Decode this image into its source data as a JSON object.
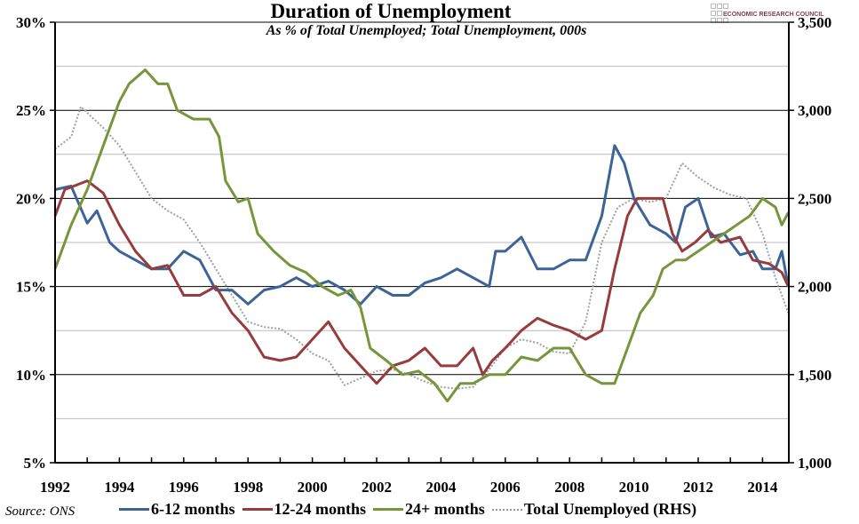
{
  "chart_data": {
    "type": "line",
    "title": "Duration of Unemployment",
    "subtitle": "As % of Total Unemployed; Total Unemployment, 000s",
    "source": "Source: ONS",
    "logo_text": "ECONOMIC RESEARCH COUNCIL",
    "x_ticks": [
      "1992",
      "1994",
      "1996",
      "1998",
      "2000",
      "2002",
      "2004",
      "2006",
      "2008",
      "2010",
      "2012",
      "2014"
    ],
    "xlim": [
      1992,
      2014.8
    ],
    "y_left": {
      "range": [
        5,
        30
      ],
      "ticks": [
        "5%",
        "10%",
        "15%",
        "20%",
        "25%",
        "30%"
      ],
      "tick_values": [
        5,
        10,
        15,
        20,
        25,
        30
      ]
    },
    "y_right": {
      "range": [
        1000,
        3500
      ],
      "ticks": [
        "1,000",
        "1,500",
        "2,000",
        "2,500",
        "3,000",
        "3,500"
      ],
      "tick_values": [
        1000,
        1500,
        2000,
        2500,
        3000,
        3500
      ]
    },
    "grid": true,
    "legend_placement": "bottom",
    "series": [
      {
        "name": "6-12 months",
        "axis": "left",
        "color": "#3c6496",
        "style": "solid",
        "x": [
          1992,
          1992.5,
          1993,
          1993.3,
          1993.7,
          1994,
          1994.5,
          1995,
          1995.5,
          1996,
          1996.5,
          1997,
          1997.5,
          1998,
          1998.5,
          1999,
          1999.5,
          2000,
          2000.5,
          2001,
          2001.5,
          2002,
          2002.5,
          2003,
          2003.5,
          2004,
          2004.5,
          2005,
          2005.5,
          2005.7,
          2006,
          2006.5,
          2007,
          2007.5,
          2008,
          2008.5,
          2009,
          2009.4,
          2009.7,
          2010,
          2010.5,
          2011,
          2011.3,
          2011.6,
          2012,
          2012.4,
          2012.8,
          2013.3,
          2013.7,
          2014,
          2014.4,
          2014.6,
          2014.8
        ],
        "y": [
          20.5,
          20.7,
          18.6,
          19.3,
          17.5,
          17.0,
          16.5,
          16.0,
          16.0,
          17.0,
          16.5,
          14.8,
          14.8,
          14.0,
          14.8,
          15.0,
          15.5,
          15.0,
          15.3,
          14.8,
          14.0,
          15.0,
          14.5,
          14.5,
          15.2,
          15.5,
          16.0,
          15.5,
          15.0,
          17.0,
          17.0,
          17.8,
          16.0,
          16.0,
          16.5,
          16.5,
          19.0,
          23.0,
          22.0,
          20.0,
          18.5,
          18.0,
          17.5,
          19.5,
          20.0,
          17.8,
          18.0,
          16.8,
          17.0,
          16.0,
          16.0,
          17.0,
          15.0
        ]
      },
      {
        "name": "12-24 months",
        "axis": "left",
        "color": "#963c3c",
        "style": "solid",
        "x": [
          1992,
          1992.3,
          1993,
          1993.5,
          1994,
          1994.5,
          1995,
          1995.5,
          1996,
          1996.5,
          1997,
          1997.5,
          1998,
          1998.5,
          1999,
          1999.5,
          2000,
          2000.5,
          2001,
          2001.5,
          2002,
          2002.5,
          2003,
          2003.5,
          2004,
          2004.5,
          2005,
          2005.3,
          2005.6,
          2006,
          2006.5,
          2007,
          2007.5,
          2008,
          2008.5,
          2009,
          2009.4,
          2009.8,
          2010.1,
          2010.5,
          2010.9,
          2011.2,
          2011.5,
          2011.9,
          2012.3,
          2012.7,
          2013.3,
          2013.7,
          2014.2,
          2014.6,
          2014.8
        ],
        "y": [
          19.0,
          20.5,
          21.0,
          20.3,
          18.5,
          17.0,
          16.0,
          16.2,
          14.5,
          14.5,
          15.0,
          13.5,
          12.5,
          11.0,
          10.8,
          11.0,
          12.0,
          13.0,
          11.5,
          10.5,
          9.5,
          10.5,
          10.8,
          11.5,
          10.5,
          10.5,
          11.5,
          10.0,
          10.8,
          11.5,
          12.5,
          13.2,
          12.8,
          12.5,
          12.0,
          12.5,
          16.0,
          19.0,
          20.0,
          20.0,
          20.0,
          18.0,
          17.0,
          17.5,
          18.2,
          17.5,
          17.8,
          16.5,
          16.3,
          15.8,
          15.0
        ]
      },
      {
        "name": "24+ months",
        "axis": "left",
        "color": "#76963c",
        "style": "solid",
        "x": [
          1992,
          1992.5,
          1993,
          1993.5,
          1994,
          1994.3,
          1994.8,
          1995.2,
          1995.5,
          1995.8,
          1996.3,
          1996.8,
          1997.1,
          1997.3,
          1997.7,
          1998,
          1998.3,
          1998.8,
          1999.3,
          1999.8,
          2000.3,
          2000.8,
          2001.2,
          2001.5,
          2001.8,
          2002.3,
          2002.8,
          2003.3,
          2003.8,
          2004.2,
          2004.6,
          2005,
          2005.5,
          2006,
          2006.5,
          2007,
          2007.5,
          2008,
          2008.5,
          2009,
          2009.4,
          2009.8,
          2010.2,
          2010.6,
          2010.9,
          2011.3,
          2011.6,
          2012,
          2012.4,
          2012.8,
          2013.2,
          2013.6,
          2014,
          2014.4,
          2014.6,
          2014.8
        ],
        "y": [
          16.0,
          18.5,
          20.5,
          23.0,
          25.5,
          26.5,
          27.3,
          26.5,
          26.5,
          25.0,
          24.5,
          24.5,
          23.5,
          21.0,
          19.8,
          20.0,
          18.0,
          17.0,
          16.2,
          15.8,
          15.0,
          14.5,
          14.8,
          13.8,
          11.5,
          10.8,
          10.0,
          10.2,
          9.5,
          8.5,
          9.5,
          9.5,
          10.0,
          10.0,
          11.0,
          10.8,
          11.5,
          11.5,
          10.0,
          9.5,
          9.5,
          11.5,
          13.5,
          14.5,
          16.0,
          16.5,
          16.5,
          17.0,
          17.5,
          18.0,
          18.5,
          19.0,
          20.0,
          19.5,
          18.5,
          19.2
        ]
      },
      {
        "name": "Total Unemployed (RHS)",
        "axis": "right",
        "color": "#a0a0a0",
        "style": "dotted",
        "x": [
          1992,
          1992.5,
          1992.8,
          1993.5,
          1994,
          1994.5,
          1995,
          1995.5,
          1996,
          1996.5,
          1997,
          1997.5,
          1998,
          1998.5,
          1999,
          1999.5,
          2000,
          2000.5,
          2001,
          2001.5,
          2002,
          2002.5,
          2003,
          2003.5,
          2004,
          2004.5,
          2005,
          2005.5,
          2006,
          2006.5,
          2007,
          2007.5,
          2008,
          2008.5,
          2009,
          2009.5,
          2010,
          2010.5,
          2011,
          2011.5,
          2012,
          2012.5,
          2013,
          2013.5,
          2014,
          2014.4,
          2014.8
        ],
        "y": [
          2780,
          2850,
          3020,
          2900,
          2800,
          2650,
          2500,
          2430,
          2380,
          2250,
          2100,
          1950,
          1800,
          1770,
          1760,
          1700,
          1620,
          1580,
          1440,
          1480,
          1520,
          1530,
          1500,
          1460,
          1430,
          1420,
          1430,
          1530,
          1650,
          1700,
          1680,
          1630,
          1620,
          1800,
          2250,
          2450,
          2500,
          2480,
          2500,
          2700,
          2620,
          2560,
          2520,
          2500,
          2300,
          2050,
          1850
        ]
      }
    ]
  }
}
